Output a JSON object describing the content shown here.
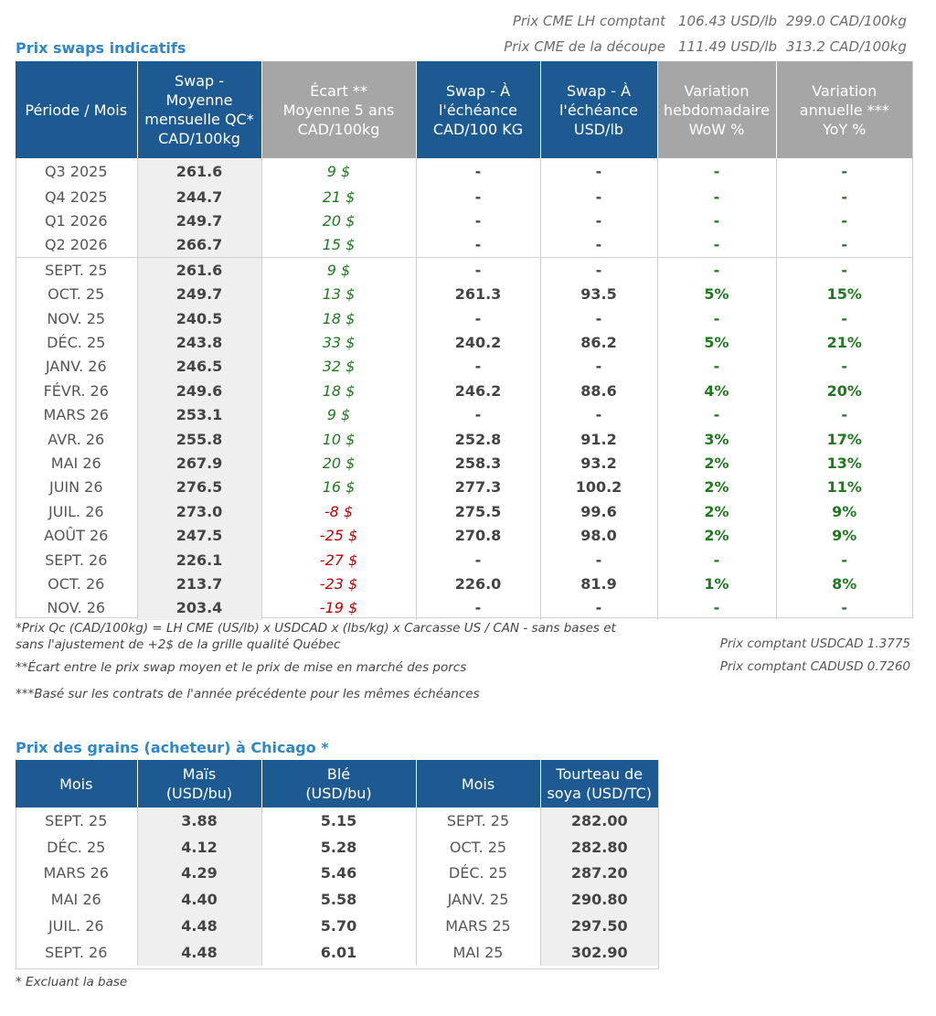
{
  "cme": {
    "lh": {
      "label": "Prix CME LH comptant",
      "usd": "106.43 USD/lb",
      "cad": "299.0 CAD/100kg"
    },
    "cut": {
      "label": "Prix CME de la découpe",
      "usd": "111.49 USD/lb",
      "cad": "313.2 CAD/100kg"
    }
  },
  "swaps": {
    "title": "Prix swaps indicatifs",
    "headers": {
      "period": "Période / Mois",
      "swap_avg": [
        "Swap - Moyenne",
        "mensuelle QC*",
        "CAD/100kg"
      ],
      "gap": [
        "Écart **",
        "Moyenne 5 ans",
        "CAD/100kg"
      ],
      "swap_cad": [
        "Swap - À",
        "l'échéance",
        "CAD/100 KG"
      ],
      "swap_usd": [
        "Swap - À",
        "l'échéance",
        "USD/lb"
      ],
      "wow": [
        "Variation",
        "hebdomadaire",
        "WoW %"
      ],
      "yoy": [
        "Variation",
        "annuelle ***",
        "YoY %"
      ]
    },
    "rows": [
      [
        "Q3 2025",
        "261.6",
        "9 $",
        "-",
        "-",
        "-",
        "-"
      ],
      [
        "Q4 2025",
        "244.7",
        "21 $",
        "-",
        "-",
        "-",
        "-"
      ],
      [
        "Q1 2026",
        "249.7",
        "20 $",
        "-",
        "-",
        "-",
        "-"
      ],
      [
        "Q2 2026",
        "266.7",
        "15 $",
        "-",
        "-",
        "-",
        "-"
      ],
      [
        "SEPT. 25",
        "261.6",
        "9 $",
        "-",
        "-",
        "-",
        "-"
      ],
      [
        "OCT. 25",
        "249.7",
        "13 $",
        "261.3",
        "93.5",
        "5%",
        "15%"
      ],
      [
        "NOV. 25",
        "240.5",
        "18 $",
        "-",
        "-",
        "-",
        "-"
      ],
      [
        "DÉC. 25",
        "243.8",
        "33 $",
        "240.2",
        "86.2",
        "5%",
        "21%"
      ],
      [
        "JANV. 26",
        "246.5",
        "32 $",
        "-",
        "-",
        "-",
        "-"
      ],
      [
        "FÉVR. 26",
        "249.6",
        "18 $",
        "246.2",
        "88.6",
        "4%",
        "20%"
      ],
      [
        "MARS 26",
        "253.1",
        "9 $",
        "-",
        "-",
        "-",
        "-"
      ],
      [
        "AVR. 26",
        "255.8",
        "10 $",
        "252.8",
        "91.2",
        "3%",
        "17%"
      ],
      [
        "MAI 26",
        "267.9",
        "20 $",
        "258.3",
        "93.2",
        "2%",
        "13%"
      ],
      [
        "JUIN 26",
        "276.5",
        "16 $",
        "277.3",
        "100.2",
        "2%",
        "11%"
      ],
      [
        "JUIL. 26",
        "273.0",
        "-8 $",
        "275.5",
        "99.6",
        "2%",
        "9%"
      ],
      [
        "AOÛT 26",
        "247.5",
        "-25 $",
        "270.8",
        "98.0",
        "2%",
        "9%"
      ],
      [
        "SEPT. 26",
        "226.1",
        "-27 $",
        "-",
        "-",
        "-",
        "-"
      ],
      [
        "OCT. 26",
        "213.7",
        "-23 $",
        "226.0",
        "81.9",
        "1%",
        "8%"
      ],
      [
        "NOV. 26",
        "203.4",
        "-19 $",
        "-",
        "-",
        "-",
        "-"
      ]
    ]
  },
  "notes": {
    "n1a": "*Prix Qc (CAD/100kg) = LH CME (US/lb) x USDCAD x (lbs/kg) x Carcasse US / CAN - sans bases et",
    "n1b": "sans l'ajustement de +2$ de la grille qualité Québec",
    "n2": "**Écart entre le prix swap moyen et le prix de mise en marché des porcs",
    "n3": "***Basé sur les contrats de l'année précédente pour les mêmes échéances",
    "usdcad": "Prix comptant USDCAD 1.3775",
    "cadusd": "Prix comptant CADUSD 0.7260"
  },
  "grains": {
    "title": "Prix des grains (acheteur) à Chicago *",
    "headers": {
      "mois1": "Mois",
      "mais": [
        "Maïs",
        "(USD/bu)"
      ],
      "ble": [
        "Blé",
        "(USD/bu)"
      ],
      "mois2": "Mois",
      "soya": [
        "Tourteau de",
        "soya (USD/TC)"
      ]
    },
    "rows": [
      [
        "SEPT. 25",
        "3.88",
        "5.15",
        "SEPT. 25",
        "282.00"
      ],
      [
        "DÉC. 25",
        "4.12",
        "5.28",
        "OCT. 25",
        "282.80"
      ],
      [
        "MARS 26",
        "4.29",
        "5.46",
        "DÉC. 25",
        "287.20"
      ],
      [
        "MAI 26",
        "4.40",
        "5.58",
        "JANV. 25",
        "290.80"
      ],
      [
        "JUIL. 26",
        "4.48",
        "5.70",
        "MARS 25",
        "297.50"
      ],
      [
        "SEPT. 26",
        "4.48",
        "6.01",
        "MAI 25",
        "302.90"
      ]
    ],
    "footnote": "* Excluant la base"
  },
  "colors": {
    "header_blue": "#1e5a92",
    "header_grey": "#a6a6a6",
    "title_blue": "#2f86c8",
    "positive": "#1f7a1f",
    "negative": "#c00000"
  }
}
